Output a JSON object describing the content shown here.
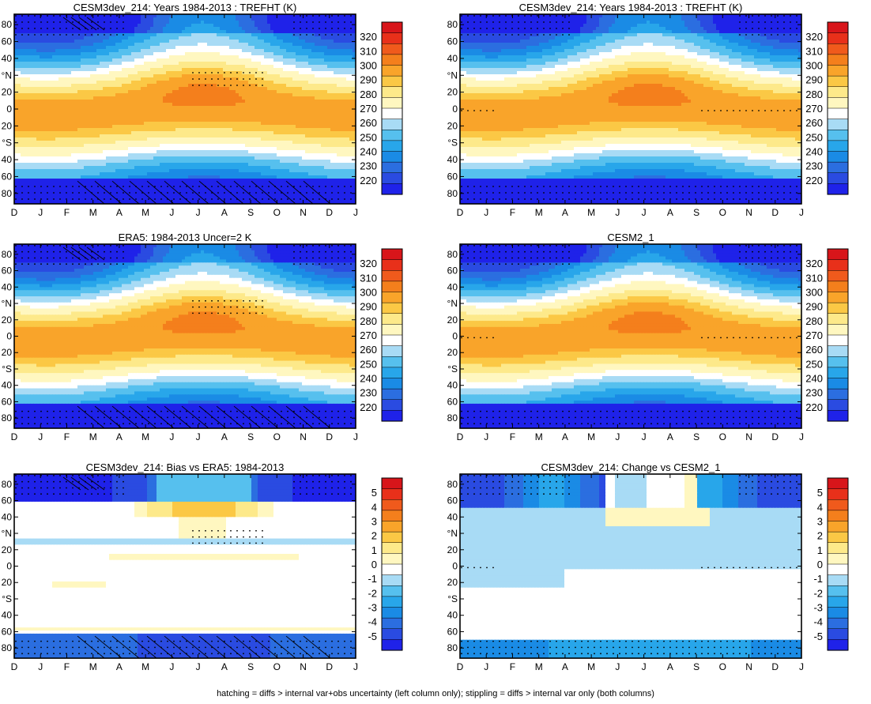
{
  "caption": "hatching = diffs > internal var+obs uncertainty (left column only); stippling = diffs > internal var only (both columns)",
  "chart_data": [
    {
      "type": "heatmap",
      "title": "CESM3dev_214: Years 1984-2013 : TREFHT (K)",
      "variable": "TREFHT (K)",
      "x_ticks": [
        "D",
        "J",
        "F",
        "M",
        "A",
        "M",
        "J",
        "J",
        "A",
        "S",
        "O",
        "N",
        "D",
        "J"
      ],
      "y_ticks": [
        "80",
        "60",
        "40",
        "°N",
        "20",
        "0",
        "20",
        "°S",
        "40",
        "60",
        "80"
      ],
      "colorbar_levels": [
        "320",
        "310",
        "300",
        "290",
        "280",
        "270",
        "260",
        "250",
        "240",
        "230",
        "220"
      ],
      "field": "absolute",
      "hatching": true,
      "stippling": true
    },
    {
      "type": "heatmap",
      "title": "CESM3dev_214: Years 1984-2013 : TREFHT (K)",
      "variable": "TREFHT (K)",
      "x_ticks": [
        "D",
        "J",
        "F",
        "M",
        "A",
        "M",
        "J",
        "J",
        "A",
        "S",
        "O",
        "N",
        "D",
        "J"
      ],
      "y_ticks": [
        "80",
        "60",
        "40",
        "°N",
        "20",
        "0",
        "20",
        "°S",
        "40",
        "60",
        "80"
      ],
      "colorbar_levels": [
        "320",
        "310",
        "300",
        "290",
        "280",
        "270",
        "260",
        "250",
        "240",
        "230",
        "220"
      ],
      "field": "absolute",
      "hatching": false,
      "stippling": true
    },
    {
      "type": "heatmap",
      "title": "ERA5: 1984-2013 Uncer=2 K",
      "x_ticks": [
        "D",
        "J",
        "F",
        "M",
        "A",
        "M",
        "J",
        "J",
        "A",
        "S",
        "O",
        "N",
        "D",
        "J"
      ],
      "y_ticks": [
        "80",
        "60",
        "40",
        "°N",
        "20",
        "0",
        "20",
        "°S",
        "40",
        "60",
        "80"
      ],
      "colorbar_levels": [
        "320",
        "310",
        "300",
        "290",
        "280",
        "270",
        "260",
        "250",
        "240",
        "230",
        "220"
      ],
      "field": "absolute",
      "hatching": true,
      "stippling": true
    },
    {
      "type": "heatmap",
      "title": "CESM2_1",
      "x_ticks": [
        "D",
        "J",
        "F",
        "M",
        "A",
        "M",
        "J",
        "J",
        "A",
        "S",
        "O",
        "N",
        "D",
        "J"
      ],
      "y_ticks": [
        "80",
        "60",
        "40",
        "°N",
        "20",
        "0",
        "20",
        "°S",
        "40",
        "60",
        "80"
      ],
      "colorbar_levels": [
        "320",
        "310",
        "300",
        "290",
        "280",
        "270",
        "260",
        "250",
        "240",
        "230",
        "220"
      ],
      "field": "absolute",
      "hatching": false,
      "stippling": true
    },
    {
      "type": "heatmap",
      "title": "CESM3dev_214: Bias vs ERA5: 1984-2013",
      "x_ticks": [
        "D",
        "J",
        "F",
        "M",
        "A",
        "M",
        "J",
        "J",
        "A",
        "S",
        "O",
        "N",
        "D",
        "J"
      ],
      "y_ticks": [
        "80",
        "60",
        "40",
        "°N",
        "20",
        "0",
        "20",
        "°S",
        "40",
        "60",
        "80"
      ],
      "colorbar_levels": [
        "5",
        "4",
        "3",
        "2",
        "1",
        "0",
        "-1",
        "-2",
        "-3",
        "-4",
        "-5"
      ],
      "field": "bias",
      "hatching": true,
      "stippling": true
    },
    {
      "type": "heatmap",
      "title": "CESM3dev_214: Change vs CESM2_1",
      "x_ticks": [
        "D",
        "J",
        "F",
        "M",
        "A",
        "M",
        "J",
        "J",
        "A",
        "S",
        "O",
        "N",
        "D",
        "J"
      ],
      "y_ticks": [
        "80",
        "60",
        "40",
        "°N",
        "20",
        "0",
        "20",
        "°S",
        "40",
        "60",
        "80"
      ],
      "colorbar_levels": [
        "5",
        "4",
        "3",
        "2",
        "1",
        "0",
        "-1",
        "-2",
        "-3",
        "-4",
        "-5"
      ],
      "field": "change",
      "hatching": false,
      "stippling": true
    }
  ]
}
